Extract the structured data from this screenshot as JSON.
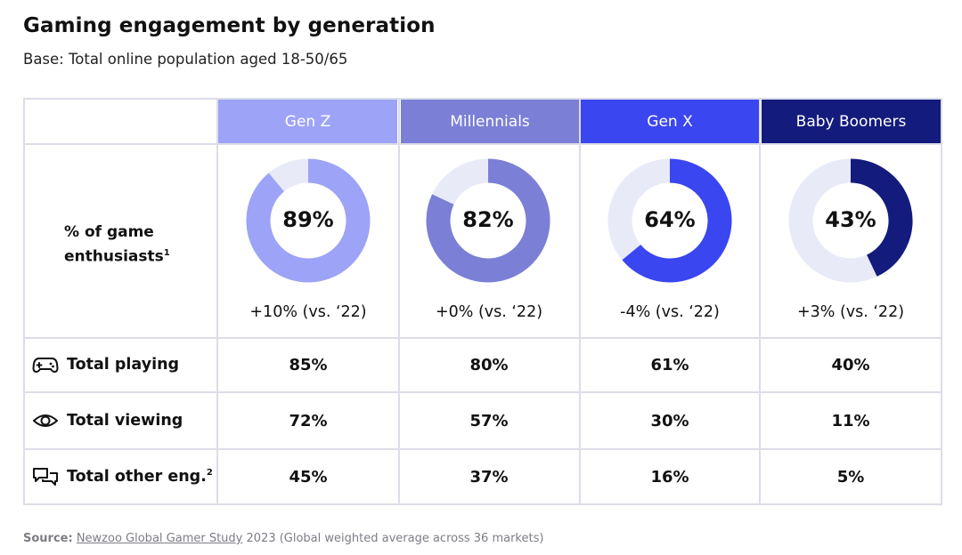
{
  "chart_data": {
    "type": "table",
    "title": "Gaming engagement by generation",
    "subtitle": "Base: Total online population aged 18-50/65",
    "columns": [
      "Gen Z",
      "Millennials",
      "Gen X",
      "Baby Boomers"
    ],
    "column_colors": [
      "#9da3f7",
      "#7b7fd6",
      "#3a46f0",
      "#131b7c"
    ],
    "track_color": "#e8eaf8",
    "enthusiasts": {
      "label_line1": "% of game",
      "label_line2": "enthusiasts",
      "footnote": "1",
      "values": [
        89,
        82,
        64,
        43
      ],
      "value_labels": [
        "89%",
        "82%",
        "64%",
        "43%"
      ],
      "deltas": [
        "+10% (vs. ‘22)",
        "+0% (vs. ‘22)",
        "-4% (vs. ‘22)",
        "+3% (vs. ‘22)"
      ]
    },
    "rows": [
      {
        "label": "Total playing",
        "footnote": "",
        "icon": "gamepad-icon",
        "values": [
          "85%",
          "80%",
          "61%",
          "40%"
        ]
      },
      {
        "label": "Total viewing",
        "footnote": "",
        "icon": "eye-icon",
        "values": [
          "72%",
          "57%",
          "30%",
          "11%"
        ]
      },
      {
        "label": "Total other eng.",
        "footnote": "2",
        "icon": "chat-bubbles-icon",
        "values": [
          "45%",
          "37%",
          "16%",
          "5%"
        ]
      }
    ]
  },
  "source": {
    "lead": "Source:",
    "link": "Newzoo Global Gamer Study",
    "rest": " 2023 (Global weighted average across 36 markets)"
  }
}
